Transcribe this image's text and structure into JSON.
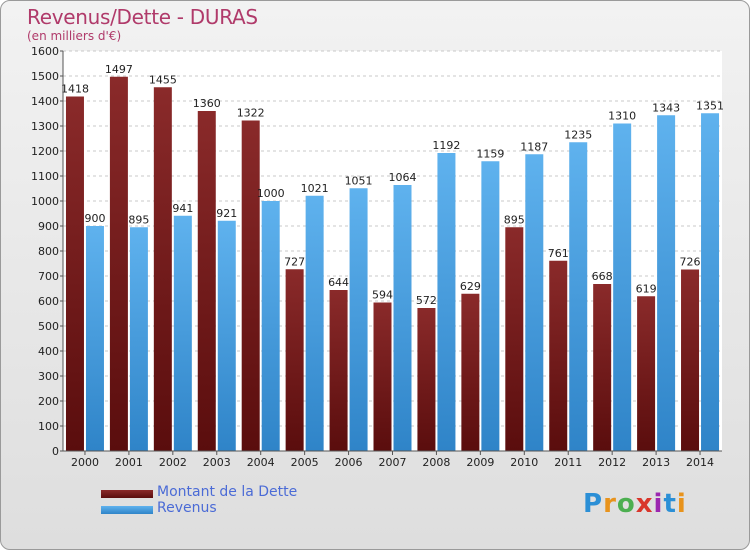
{
  "header": {
    "title": "Revenus/Dette - DURAS",
    "subtitle": "(en milliers d'€)"
  },
  "logo": {
    "text": "Proxiti",
    "colors": [
      "#2b8fd6",
      "#e8931c",
      "#4caf50",
      "#d9362b",
      "#9c27b0",
      "#2b8fd6",
      "#e8931c"
    ]
  },
  "chart_data": {
    "type": "bar",
    "categories": [
      "2000",
      "2001",
      "2002",
      "2003",
      "2004",
      "2005",
      "2006",
      "2007",
      "2008",
      "2009",
      "2010",
      "2011",
      "2012",
      "2013",
      "2014"
    ],
    "series": [
      {
        "name": "Montant de la Dette",
        "color": "#7a1f1f",
        "values": [
          1418,
          1497,
          1455,
          1360,
          1322,
          727,
          644,
          594,
          572,
          629,
          895,
          761,
          668,
          619,
          726
        ]
      },
      {
        "name": "Revenus",
        "color": "#4aa3e3",
        "values": [
          900,
          895,
          941,
          921,
          1000,
          1021,
          1051,
          1064,
          1192,
          1159,
          1187,
          1235,
          1310,
          1343,
          1351
        ]
      }
    ],
    "title": "Revenus/Dette - DURAS",
    "subtitle": "(en milliers d'€)",
    "ylim": [
      0,
      1600
    ],
    "yticks": [
      0,
      100,
      200,
      300,
      400,
      500,
      600,
      700,
      800,
      900,
      1000,
      1100,
      1200,
      1300,
      1400,
      1500,
      1600
    ],
    "grid": true,
    "legend_position": "bottom-left"
  }
}
